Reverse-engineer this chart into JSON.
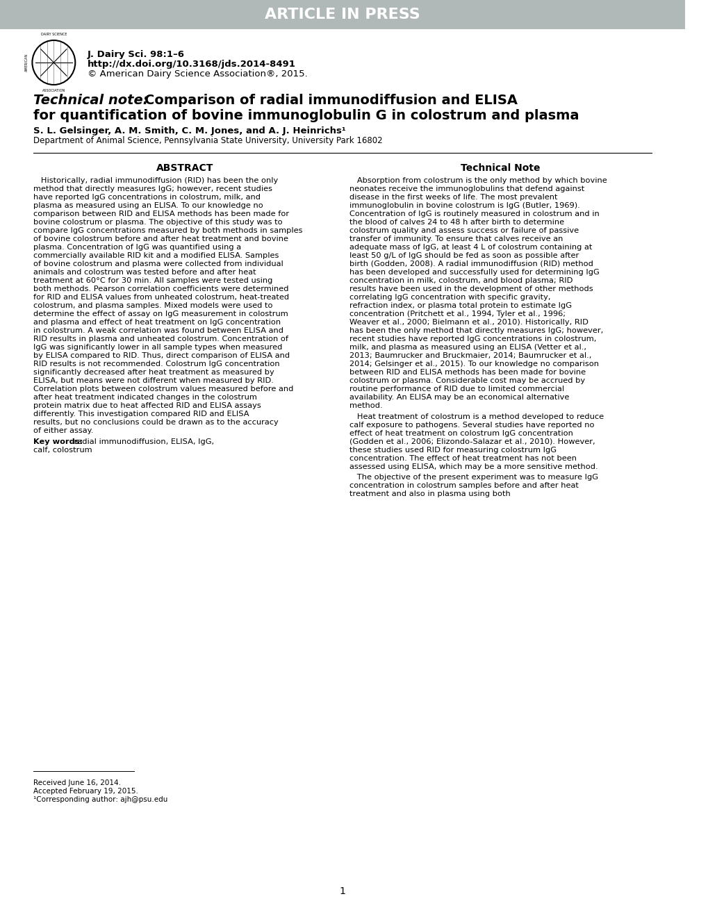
{
  "header_bg_color": "#b0b8b8",
  "header_text": "ARTICLE IN PRESS",
  "header_text_color": "#ffffff",
  "journal_name": "J. Dairy Sci. 98:1–6",
  "doi": "http://dx.doi.org/10.3168/jds.2014-8491",
  "copyright": "© American Dairy Science Association®, 2015.",
  "title_italic": "Technical note:",
  "title_bold": " Comparison of radial immunodiffusion and ELISA\nfor quantification of bovine immunoglobulin G in colostrum and plasma",
  "authors": "S. L. Gelsinger, A. M. Smith, C. M. Jones, and A. J. Heinrichs¹",
  "affiliation": "Department of Animal Science, Pennsylvania State University, University Park 16802",
  "abstract_header": "ABSTRACT",
  "technical_note_header": "Technical Note",
  "abstract_text": "Historically, radial immunodiffusion (RID) has been the only method that directly measures IgG; however, recent studies have reported IgG concentrations in colostrum, milk, and plasma as measured using an ELISA. To our knowledge no comparison between RID and ELISA methods has been made for bovine colostrum or plasma. The objective of this study was to compare IgG concentrations measured by both methods in samples of bovine colostrum before and after heat treatment and bovine plasma. Concentration of IgG was quantified using a commercially available RID kit and a modified ELISA. Samples of bovine colostrum and plasma were collected from individual animals and colostrum was tested before and after heat treatment at 60°C for 30 min. All samples were tested using both methods. Pearson correlation coefficients were determined for RID and ELISA values from unheated colostrum, heat-treated colostrum, and plasma samples. Mixed models were used to determine the effect of assay on IgG measurement in colostrum and plasma and effect of heat treatment on IgG concentration in colostrum. A weak correlation was found between ELISA and RID results in plasma and unheated colostrum. Concentration of IgG was significantly lower in all sample types when measured by ELISA compared to RID. Thus, direct comparison of ELISA and RID results is not recommended. Colostrum IgG concentration significantly decreased after heat treatment as measured by ELISA, but means were not different when measured by RID. Correlation plots between colostrum values measured before and after heat treatment indicated changes in the colostrum protein matrix due to heat affected RID and ELISA assays differently. This investigation compared RID and ELISA results, but no conclusions could be drawn as to the accuracy of either assay.",
  "keywords": "Key words:  radial immunodiffusion, ELISA, IgG, calf, colostrum",
  "tech_note_text": "Absorption from colostrum is the only method by which bovine neonates receive the immunoglobulins that defend against disease in the first weeks of life. The most prevalent immunoglobulin in bovine colostrum is IgG (Butler, 1969). Concentration of IgG is routinely measured in colostrum and in the blood of calves 24 to 48 h after birth to determine colostrum quality and assess success or failure of passive transfer of immunity. To ensure that calves receive an adequate mass of IgG, at least 4 L of colostrum containing at least 50 g/L of IgG should be fed as soon as possible after birth (Godden, 2008). A radial immunodiffusion (RID) method has been developed and successfully used for determining IgG concentration in milk, colostrum, and blood plasma; RID results have been used in the development of other methods correlating IgG concentration with specific gravity, refraction index, or plasma total protein to estimate IgG concentration (Pritchett et al., 1994, Tyler et al., 1996; Weaver et al., 2000; Bielmann et al., 2010). Historically, RID has been the only method that directly measures IgG; however, recent studies have reported IgG concentrations in colostrum, milk, and plasma as measured using an ELISA (Vetter et al., 2013; Baumrucker and Bruckmaier, 2014; Baumrucker et al., 2014; Gelsinger et al., 2015). To our knowledge no comparison between RID and ELISA methods has been made for bovine colostrum or plasma. Considerable cost may be accrued by routine performance of RID due to limited commercial availability. An ELISA may be an economical alternative method.\n\nHeat treatment of colostrum is a method developed to reduce calf exposure to pathogens. Several studies have reported no effect of heat treatment on colostrum IgG concentration (Godden et al., 2006; Elizondo-Salazar et al., 2010). However, these studies used RID for measuring colostrum IgG concentration. The effect of heat treatment has not been assessed using ELISA, which may be a more sensitive method.\n\nThe objective of the present experiment was to measure IgG concentration in colostrum samples before and after heat treatment and also in plasma using both",
  "footnote_received": "Received June 16, 2014.",
  "footnote_accepted": "Accepted February 19, 2015.",
  "footnote_corresponding": "¹Corresponding author: ajh@psu.edu",
  "page_number": "1",
  "bg_color": "#ffffff",
  "text_color": "#000000"
}
